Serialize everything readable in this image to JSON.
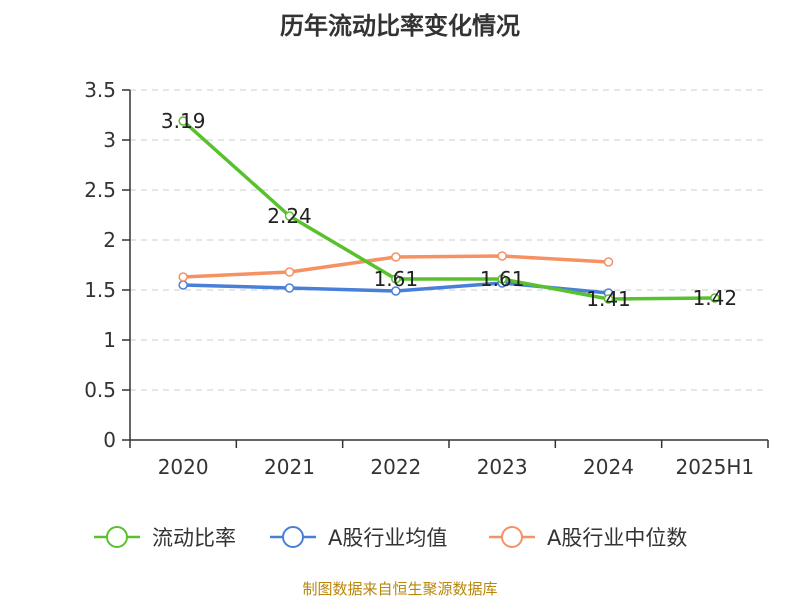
{
  "chart_data": {
    "type": "line",
    "title": "历年流动比率变化情况",
    "categories": [
      "2020",
      "2021",
      "2022",
      "2023",
      "2024",
      "2025H1"
    ],
    "ylim": [
      0,
      3.5
    ],
    "yticks": [
      "0",
      "0.5",
      "1",
      "1.5",
      "2",
      "2.5",
      "3",
      "3.5"
    ],
    "grid": true,
    "legend_position": "bottom",
    "series": [
      {
        "name": "流动比率",
        "color": "#5ac12e",
        "values": [
          3.19,
          2.24,
          1.61,
          1.61,
          1.41,
          1.42
        ],
        "labels": [
          "3.19",
          "2.24",
          "1.61",
          "1.61",
          "1.41",
          "1.42"
        ]
      },
      {
        "name": "A股行业均值",
        "color": "#4a7fd8",
        "values": [
          1.55,
          1.52,
          1.49,
          1.57,
          1.47,
          null
        ]
      },
      {
        "name": "A股行业中位数",
        "color": "#f59162",
        "values": [
          1.63,
          1.68,
          1.83,
          1.84,
          1.78,
          null
        ]
      }
    ]
  },
  "source": "制图数据来自恒生聚源数据库"
}
